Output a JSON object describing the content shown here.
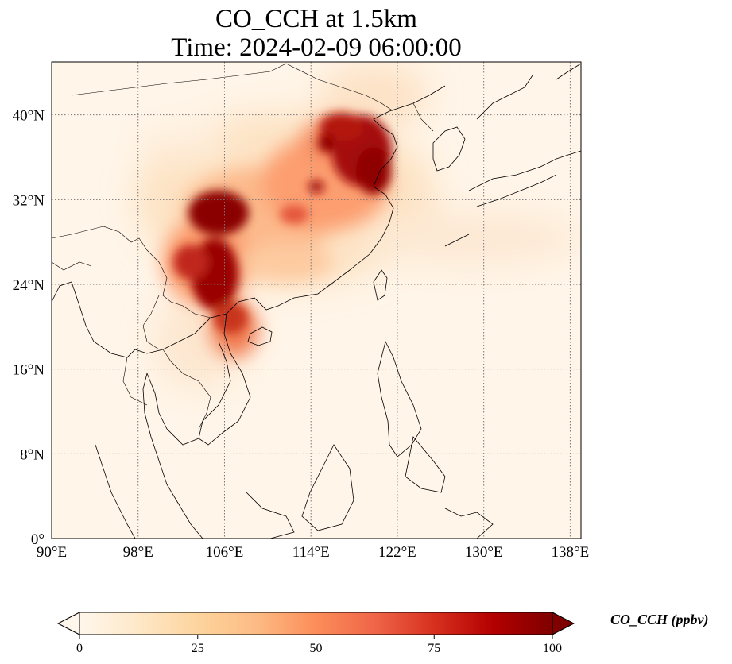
{
  "title_line1": "CO_CCH at 1.5km",
  "title_line2": "Time: 2024-02-09 06:00:00",
  "map": {
    "lon_range": [
      90,
      139
    ],
    "lat_range": [
      0,
      45
    ],
    "lon_ticks": [
      {
        "v": 90,
        "label": "90°E"
      },
      {
        "v": 98,
        "label": "98°E"
      },
      {
        "v": 106,
        "label": "106°E"
      },
      {
        "v": 114,
        "label": "114°E"
      },
      {
        "v": 122,
        "label": "122°E"
      },
      {
        "v": 130,
        "label": "130°E"
      },
      {
        "v": 138,
        "label": "138°E"
      }
    ],
    "lat_ticks": [
      {
        "v": 0,
        "label": "0°"
      },
      {
        "v": 8,
        "label": "8°N"
      },
      {
        "v": 16,
        "label": "16°N"
      },
      {
        "v": 24,
        "label": "24°N"
      },
      {
        "v": 32,
        "label": "32°N"
      },
      {
        "v": 40,
        "label": "40°N"
      }
    ],
    "gridlines": "dotted",
    "concentration_features": [
      {
        "name": "sichuan-basin",
        "lon": 105.5,
        "lat": 30.5,
        "value": 100
      },
      {
        "name": "chongqing-guizhou",
        "lon": 106.5,
        "lat": 26.0,
        "value": 100
      },
      {
        "name": "north-china-plain",
        "lon": 117.5,
        "lat": 37.0,
        "value": 90
      },
      {
        "name": "northern-vietnam",
        "lon": 106.0,
        "lat": 21.5,
        "value": 85
      },
      {
        "name": "yangtze-corridor",
        "lon": 112.0,
        "lat": 30.0,
        "value": 40
      },
      {
        "name": "pacific-outflow",
        "lon": 130.0,
        "lat": 28.0,
        "value": 10
      }
    ]
  },
  "colorbar": {
    "label": "CO_CCH (ppbv)",
    "min": 0,
    "max": 100,
    "extend": "both",
    "ticks": [
      {
        "v": 0,
        "label": "0"
      },
      {
        "v": 25,
        "label": "25"
      },
      {
        "v": 50,
        "label": "50"
      },
      {
        "v": 75,
        "label": "75"
      },
      {
        "v": 100,
        "label": "100"
      }
    ],
    "colormap": "OrRd",
    "colors": [
      "#fff7ec",
      "#fee8c8",
      "#fdd49e",
      "#fdbb84",
      "#fc8d59",
      "#ef6548",
      "#d7301f",
      "#b30000",
      "#7f0000"
    ]
  }
}
